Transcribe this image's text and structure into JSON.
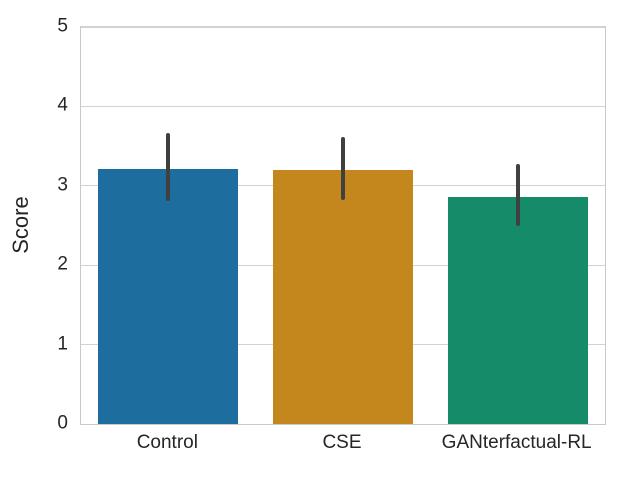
{
  "chart_data": {
    "type": "bar",
    "categories": [
      "Control",
      "CSE",
      "GANterfactual-RL"
    ],
    "values": [
      3.21,
      3.2,
      2.86
    ],
    "error_bars": [
      [
        2.81,
        3.66
      ],
      [
        2.82,
        3.62
      ],
      [
        2.49,
        3.27
      ]
    ],
    "title": "",
    "xlabel": "",
    "ylabel": "Score",
    "ylim": [
      0,
      5
    ],
    "yticks": [
      0,
      1,
      2,
      3,
      4,
      5
    ],
    "grid": "horizontal",
    "legend": "none",
    "bar_colors": [
      "#1d6e9e",
      "#c4871e",
      "#168b69"
    ],
    "error_color": "#404040",
    "text_color": "#262626"
  }
}
